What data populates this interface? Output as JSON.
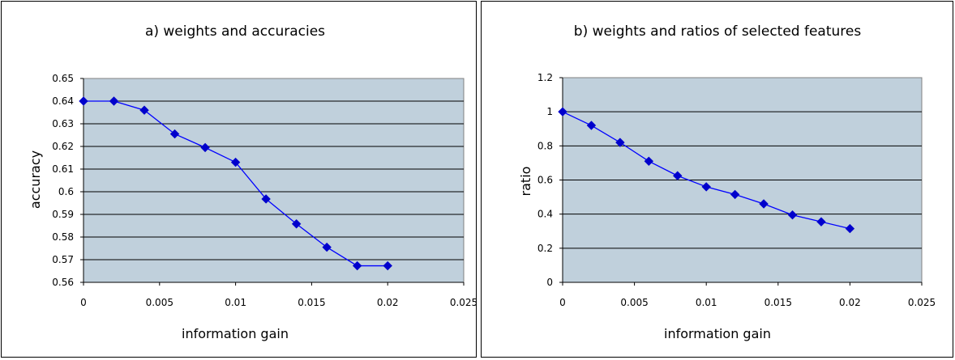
{
  "chart_data": [
    {
      "type": "line",
      "title": "a) weights and accuracies",
      "xlabel": "information gain",
      "ylabel": "accuracy",
      "xlim": [
        0,
        0.025
      ],
      "ylim": [
        0.56,
        0.65
      ],
      "xticks": [
        "0",
        "0.005",
        "0.01",
        "0.015",
        "0.02",
        "0.025"
      ],
      "yticks": [
        "0.56",
        "0.57",
        "0.58",
        "0.59",
        "0.6",
        "0.61",
        "0.62",
        "0.63",
        "0.64",
        "0.65"
      ],
      "grid": true,
      "legend": "none",
      "colors": {
        "plot_bg": "#c0d0dc",
        "line": "#0000ff",
        "marker": "#0000cc"
      },
      "series": [
        {
          "x": [
            0,
            0.002,
            0.004,
            0.006,
            0.008,
            0.01,
            0.012,
            0.014,
            0.016,
            0.018,
            0.02
          ],
          "y": [
            0.64,
            0.64,
            0.636,
            0.6255,
            0.6195,
            0.613,
            0.5968,
            0.5858,
            0.5755,
            0.5673,
            0.5673
          ]
        }
      ]
    },
    {
      "type": "line",
      "title": "b) weights and ratios of selected features",
      "xlabel": "information gain",
      "ylabel": "ratio",
      "xlim": [
        0,
        0.025
      ],
      "ylim": [
        0,
        1.2
      ],
      "xticks": [
        "0",
        "0.005",
        "0.01",
        "0.015",
        "0.02",
        "0.025"
      ],
      "yticks": [
        "0",
        "0.2",
        "0.4",
        "0.6",
        "0.8",
        "1",
        "1.2"
      ],
      "grid": true,
      "legend": "none",
      "colors": {
        "plot_bg": "#c0d0dc",
        "line": "#0000ff",
        "marker": "#0000cc"
      },
      "series": [
        {
          "x": [
            0,
            0.002,
            0.004,
            0.006,
            0.008,
            0.01,
            0.012,
            0.014,
            0.016,
            0.018,
            0.02
          ],
          "y": [
            1.0,
            0.92,
            0.82,
            0.71,
            0.625,
            0.56,
            0.515,
            0.46,
            0.395,
            0.355,
            0.315
          ]
        }
      ]
    }
  ]
}
